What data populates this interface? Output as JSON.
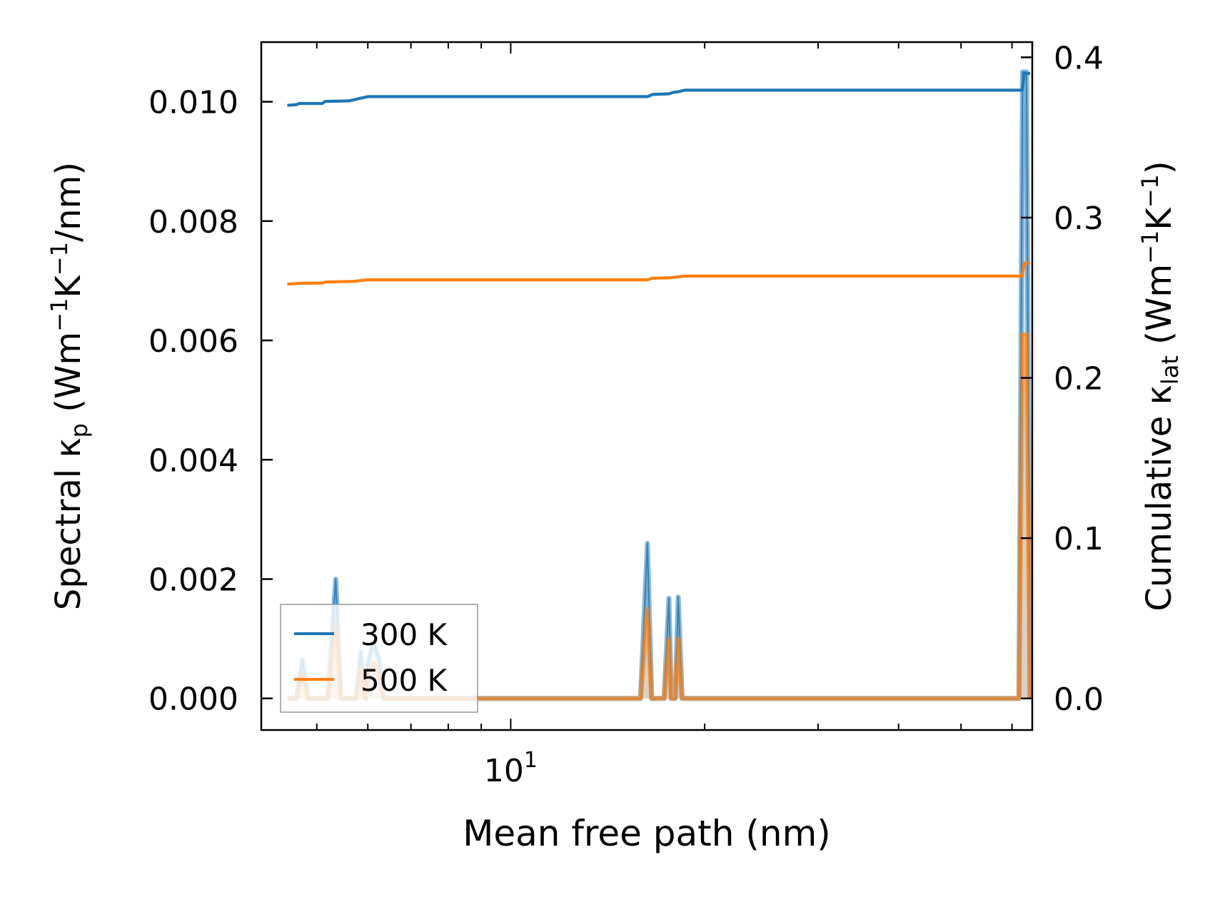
{
  "chart_data": {
    "type": "line",
    "title": "",
    "xlabel": "Mean free path (nm)",
    "xscale": "log",
    "xlim": [
      4.1,
      64.5
    ],
    "x_tick_label": {
      "value": 10,
      "base": "10",
      "exp": "1"
    },
    "y_left": {
      "label_prefix": "Spectral κ",
      "label_sub": "p",
      "label_unit_open": " (Wm",
      "label_unit_sup1": "−1",
      "label_unit_mid": "K",
      "label_unit_sup2": "−1",
      "label_unit_close": "/nm)",
      "ylim": [
        -0.00053,
        0.011
      ],
      "ticks": [
        0.0,
        0.002,
        0.004,
        0.006,
        0.008,
        0.01
      ],
      "tick_labels": [
        "0.000",
        "0.002",
        "0.004",
        "0.006",
        "0.008",
        "0.010"
      ]
    },
    "y_right": {
      "label_prefix": "Cumulative κ",
      "label_sub": "lat",
      "label_unit_open": " (Wm",
      "label_unit_sup1": "−1",
      "label_unit_mid": "K",
      "label_unit_sup2": "−1",
      "label_unit_close": ")",
      "ylim": [
        -0.0197,
        0.4095
      ],
      "ticks": [
        0.0,
        0.1,
        0.2,
        0.3,
        0.4
      ],
      "tick_labels": [
        "0.0",
        "0.1",
        "0.2",
        "0.3",
        "0.4"
      ]
    },
    "legend": {
      "position": "lower-left",
      "entries": [
        {
          "label": "300 K",
          "color": "#1f77b4"
        },
        {
          "label": "500 K",
          "color": "#ff7f0e"
        }
      ]
    },
    "series": [
      {
        "name": "300 K",
        "color": "#1f77b4",
        "axis": "right",
        "kind": "cumulative",
        "points": [
          [
            4.5,
            0.37
          ],
          [
            4.65,
            0.3705
          ],
          [
            4.7,
            0.3712
          ],
          [
            5.1,
            0.3712
          ],
          [
            5.15,
            0.3725
          ],
          [
            5.6,
            0.3728
          ],
          [
            5.7,
            0.3735
          ],
          [
            5.85,
            0.3745
          ],
          [
            6.0,
            0.3755
          ],
          [
            16.3,
            0.3755
          ],
          [
            16.6,
            0.3768
          ],
          [
            17.6,
            0.3772
          ],
          [
            17.9,
            0.3782
          ],
          [
            18.2,
            0.3785
          ],
          [
            18.6,
            0.3795
          ],
          [
            62.2,
            0.3795
          ],
          [
            62.7,
            0.39
          ],
          [
            64.0,
            0.39
          ]
        ]
      },
      {
        "name": "500 K",
        "color": "#ff7f0e",
        "axis": "right",
        "kind": "cumulative",
        "points": [
          [
            4.5,
            0.2585
          ],
          [
            4.7,
            0.259
          ],
          [
            5.1,
            0.2592
          ],
          [
            5.15,
            0.2598
          ],
          [
            5.7,
            0.2602
          ],
          [
            6.0,
            0.2612
          ],
          [
            16.3,
            0.2612
          ],
          [
            16.6,
            0.2622
          ],
          [
            17.6,
            0.2624
          ],
          [
            18.6,
            0.2635
          ],
          [
            62.2,
            0.2635
          ],
          [
            62.7,
            0.2715
          ],
          [
            64.0,
            0.2715
          ]
        ]
      },
      {
        "name": "300 K spectral",
        "color": "#1f77b4",
        "axis": "left",
        "kind": "spectral",
        "points": [
          [
            4.5,
            0
          ],
          [
            4.65,
            0
          ],
          [
            4.75,
            0.00065
          ],
          [
            4.85,
            0
          ],
          [
            5.2,
            0
          ],
          [
            5.35,
            0.002
          ],
          [
            5.45,
            0
          ],
          [
            5.75,
            0
          ],
          [
            5.85,
            0.00078
          ],
          [
            5.95,
            0
          ],
          [
            6.0,
            0.0006
          ],
          [
            6.12,
            0.00095
          ],
          [
            6.25,
            0.00065
          ],
          [
            6.35,
            0
          ],
          [
            15.9,
            0
          ],
          [
            16.3,
            0.0026
          ],
          [
            16.55,
            0
          ],
          [
            17.3,
            0
          ],
          [
            17.6,
            0.00168
          ],
          [
            17.75,
            0
          ],
          [
            18.0,
            0
          ],
          [
            18.2,
            0.0017
          ],
          [
            18.45,
            0
          ],
          [
            61.5,
            0
          ],
          [
            62.3,
            0.0105
          ],
          [
            63.2,
            0.0105
          ],
          [
            64.0,
            0
          ]
        ]
      },
      {
        "name": "500 K spectral",
        "color": "#ff7f0e",
        "axis": "left",
        "kind": "spectral",
        "points": [
          [
            4.5,
            0
          ],
          [
            4.65,
            0
          ],
          [
            4.75,
            0.0004
          ],
          [
            4.85,
            0
          ],
          [
            5.2,
            0
          ],
          [
            5.35,
            0.0012
          ],
          [
            5.45,
            0
          ],
          [
            5.75,
            0
          ],
          [
            5.85,
            0.0005
          ],
          [
            5.95,
            0
          ],
          [
            6.0,
            0.0004
          ],
          [
            6.12,
            0.0006
          ],
          [
            6.25,
            0.0004
          ],
          [
            6.35,
            0
          ],
          [
            15.9,
            0
          ],
          [
            16.3,
            0.0015
          ],
          [
            16.55,
            0
          ],
          [
            17.3,
            0
          ],
          [
            17.6,
            0.001
          ],
          [
            17.75,
            0
          ],
          [
            18.0,
            0
          ],
          [
            18.2,
            0.001
          ],
          [
            18.45,
            0
          ],
          [
            61.5,
            0
          ],
          [
            62.3,
            0.0061
          ],
          [
            63.2,
            0.0061
          ],
          [
            64.0,
            0
          ]
        ]
      }
    ]
  }
}
